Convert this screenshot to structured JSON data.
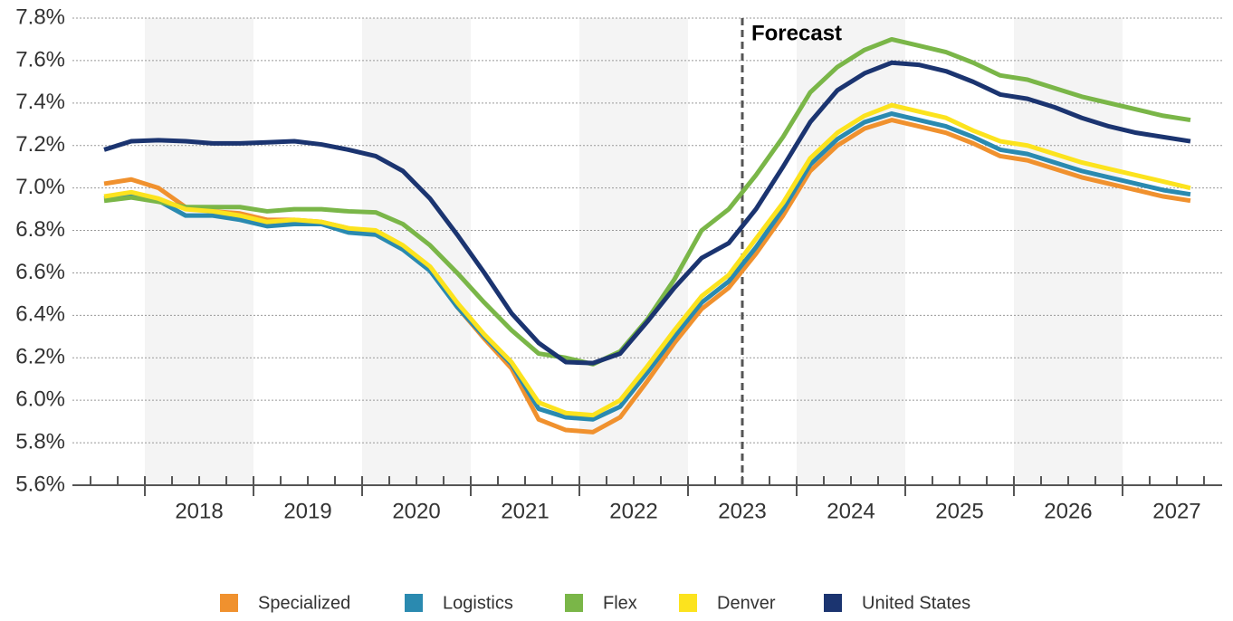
{
  "chart_data": {
    "type": "line",
    "x": [
      2017.625,
      2017.875,
      2018.125,
      2018.375,
      2018.625,
      2018.875,
      2019.125,
      2019.375,
      2019.625,
      2019.875,
      2020.125,
      2020.375,
      2020.625,
      2020.875,
      2021.125,
      2021.375,
      2021.625,
      2021.875,
      2022.125,
      2022.375,
      2022.625,
      2022.875,
      2023.125,
      2023.375,
      2023.625,
      2023.875,
      2024.125,
      2024.375,
      2024.625,
      2024.875,
      2025.125,
      2025.375,
      2025.625,
      2025.875,
      2026.125,
      2026.375,
      2026.625,
      2026.875,
      2027.125,
      2027.375,
      2027.625
    ],
    "series": [
      {
        "name": "Specialized",
        "color": "#f0912e",
        "values": [
          7.02,
          7.04,
          7.0,
          6.91,
          6.89,
          6.88,
          6.85,
          6.85,
          6.84,
          6.81,
          6.79,
          6.72,
          6.62,
          6.44,
          6.29,
          6.15,
          5.91,
          5.86,
          5.85,
          5.92,
          6.09,
          6.27,
          6.43,
          6.53,
          6.69,
          6.87,
          7.08,
          7.2,
          7.28,
          7.32,
          7.29,
          7.26,
          7.21,
          7.15,
          7.13,
          7.09,
          7.05,
          7.02,
          6.99,
          6.96,
          6.94
        ]
      },
      {
        "name": "Logistics",
        "color": "#2a8ab0",
        "values": [
          6.95,
          6.97,
          6.94,
          6.87,
          6.87,
          6.85,
          6.82,
          6.83,
          6.83,
          6.79,
          6.78,
          6.71,
          6.61,
          6.44,
          6.3,
          6.17,
          5.96,
          5.92,
          5.91,
          5.97,
          6.13,
          6.3,
          6.46,
          6.56,
          6.72,
          6.9,
          7.11,
          7.23,
          7.31,
          7.35,
          7.32,
          7.29,
          7.24,
          7.18,
          7.16,
          7.12,
          7.08,
          7.05,
          7.02,
          6.99,
          6.97
        ]
      },
      {
        "name": "Flex",
        "color": "#7ab648",
        "values": [
          6.94,
          6.955,
          6.935,
          6.91,
          6.91,
          6.91,
          6.89,
          6.9,
          6.9,
          6.89,
          6.885,
          6.83,
          6.73,
          6.6,
          6.46,
          6.33,
          6.22,
          6.2,
          6.17,
          6.23,
          6.38,
          6.57,
          6.8,
          6.9,
          7.06,
          7.24,
          7.45,
          7.57,
          7.65,
          7.7,
          7.67,
          7.64,
          7.59,
          7.53,
          7.51,
          7.47,
          7.43,
          7.4,
          7.37,
          7.34,
          7.32
        ]
      },
      {
        "name": "Denver",
        "color": "#fce31e",
        "values": [
          6.96,
          6.98,
          6.95,
          6.9,
          6.89,
          6.87,
          6.84,
          6.85,
          6.84,
          6.81,
          6.8,
          6.73,
          6.63,
          6.46,
          6.31,
          6.18,
          5.99,
          5.94,
          5.93,
          6.0,
          6.16,
          6.33,
          6.49,
          6.59,
          6.76,
          6.93,
          7.14,
          7.26,
          7.34,
          7.39,
          7.36,
          7.33,
          7.27,
          7.22,
          7.2,
          7.16,
          7.12,
          7.09,
          7.06,
          7.03,
          7.0
        ]
      },
      {
        "name": "United States",
        "color": "#1b3470",
        "values": [
          7.18,
          7.22,
          7.225,
          7.22,
          7.21,
          7.21,
          7.215,
          7.22,
          7.205,
          7.18,
          7.15,
          7.08,
          6.95,
          6.78,
          6.6,
          6.41,
          6.27,
          6.18,
          6.175,
          6.22,
          6.37,
          6.53,
          6.67,
          6.74,
          6.9,
          7.1,
          7.31,
          7.46,
          7.54,
          7.59,
          7.58,
          7.55,
          7.5,
          7.44,
          7.42,
          7.38,
          7.33,
          7.29,
          7.26,
          7.24,
          7.22
        ]
      }
    ],
    "xlim": [
      2017.333,
      2027.917
    ],
    "xticks": [
      {
        "value": 2018.5,
        "label": "2018"
      },
      {
        "value": 2019.5,
        "label": "2019"
      },
      {
        "value": 2020.5,
        "label": "2020"
      },
      {
        "value": 2021.5,
        "label": "2021"
      },
      {
        "value": 2022.5,
        "label": "2022"
      },
      {
        "value": 2023.5,
        "label": "2023"
      },
      {
        "value": 2024.5,
        "label": "2024"
      },
      {
        "value": 2025.5,
        "label": "2025"
      },
      {
        "value": 2026.5,
        "label": "2026"
      },
      {
        "value": 2027.5,
        "label": "2027"
      }
    ],
    "ylim": [
      5.6,
      7.8
    ],
    "yticks": [
      {
        "value": 5.6,
        "label": "5.6%"
      },
      {
        "value": 5.8,
        "label": "5.8%"
      },
      {
        "value": 6.0,
        "label": "6.0%"
      },
      {
        "value": 6.2,
        "label": "6.2%"
      },
      {
        "value": 6.4,
        "label": "6.4%"
      },
      {
        "value": 6.6,
        "label": "6.6%"
      },
      {
        "value": 6.8,
        "label": "6.8%"
      },
      {
        "value": 7.0,
        "label": "7.0%"
      },
      {
        "value": 7.2,
        "label": "7.2%"
      },
      {
        "value": 7.4,
        "label": "7.4%"
      },
      {
        "value": 7.6,
        "label": "7.6%"
      },
      {
        "value": 7.8,
        "label": "7.8%"
      }
    ],
    "grid": true,
    "annotation": {
      "text": "Forecast",
      "x": 2023.5
    },
    "legend": "bottom"
  }
}
